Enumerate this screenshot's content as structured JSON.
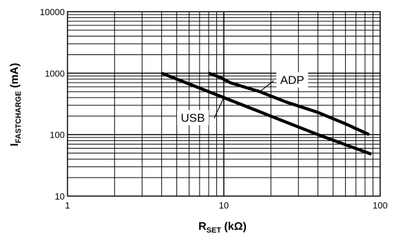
{
  "chart_data": {
    "type": "line",
    "x_scale": "log",
    "y_scale": "log",
    "xlim": [
      1,
      100
    ],
    "ylim": [
      10,
      10000
    ],
    "grid": true,
    "x_ticks": [
      "1",
      "10",
      "100"
    ],
    "y_ticks": [
      "10",
      "100",
      "1000",
      "10000"
    ],
    "xlabel": {
      "main": "R",
      "sub": "SET",
      "unit": " (kΩ)"
    },
    "ylabel": {
      "main": "I",
      "sub": "FASTCHARGE",
      "unit": " (mA)"
    },
    "series": [
      {
        "name": "ADP",
        "points": [
          [
            8,
            1000
          ],
          [
            9.5,
            850
          ],
          [
            11,
            700
          ],
          [
            14,
            580
          ],
          [
            17,
            500
          ],
          [
            25,
            340
          ],
          [
            40,
            230
          ],
          [
            60,
            150
          ],
          [
            85,
            100
          ]
        ]
      },
      {
        "name": "USB",
        "points": [
          [
            4,
            1000
          ],
          [
            10,
            400
          ],
          [
            20,
            200
          ],
          [
            40,
            100
          ],
          [
            88,
            48
          ]
        ]
      }
    ]
  }
}
